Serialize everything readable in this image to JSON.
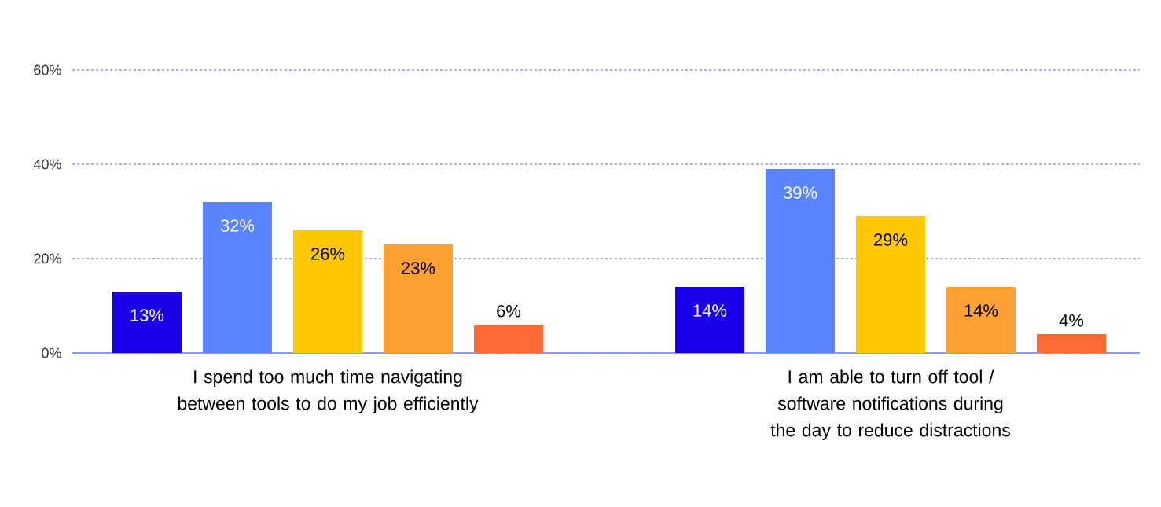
{
  "chart_data": {
    "type": "bar",
    "categories": [
      "I spend too much time navigating between tools to do my job efficiently",
      "I am able to turn off tool / software notifications during the day to reduce distractions"
    ],
    "series": [
      {
        "color": "#1a00e8",
        "values": [
          13,
          14
        ],
        "value_labels": [
          "13%",
          "14%"
        ]
      },
      {
        "color": "#5b84ff",
        "values": [
          32,
          39
        ],
        "value_labels": [
          "32%",
          "39%"
        ]
      },
      {
        "color": "#ffc800",
        "values": [
          26,
          29
        ],
        "value_labels": [
          "26%",
          "29%"
        ]
      },
      {
        "color": "#ffa033",
        "values": [
          23,
          14
        ],
        "value_labels": [
          "23%",
          "14%"
        ]
      },
      {
        "color": "#ff6a35",
        "values": [
          6,
          4
        ],
        "value_labels": [
          "6%",
          "4%"
        ]
      }
    ],
    "ylim": [
      0,
      60
    ],
    "yticks": [
      {
        "value": 0,
        "label": "0%"
      },
      {
        "value": 20,
        "label": "20%"
      },
      {
        "value": 40,
        "label": "40%"
      },
      {
        "value": 60,
        "label": "60%"
      }
    ],
    "grid": "y"
  }
}
